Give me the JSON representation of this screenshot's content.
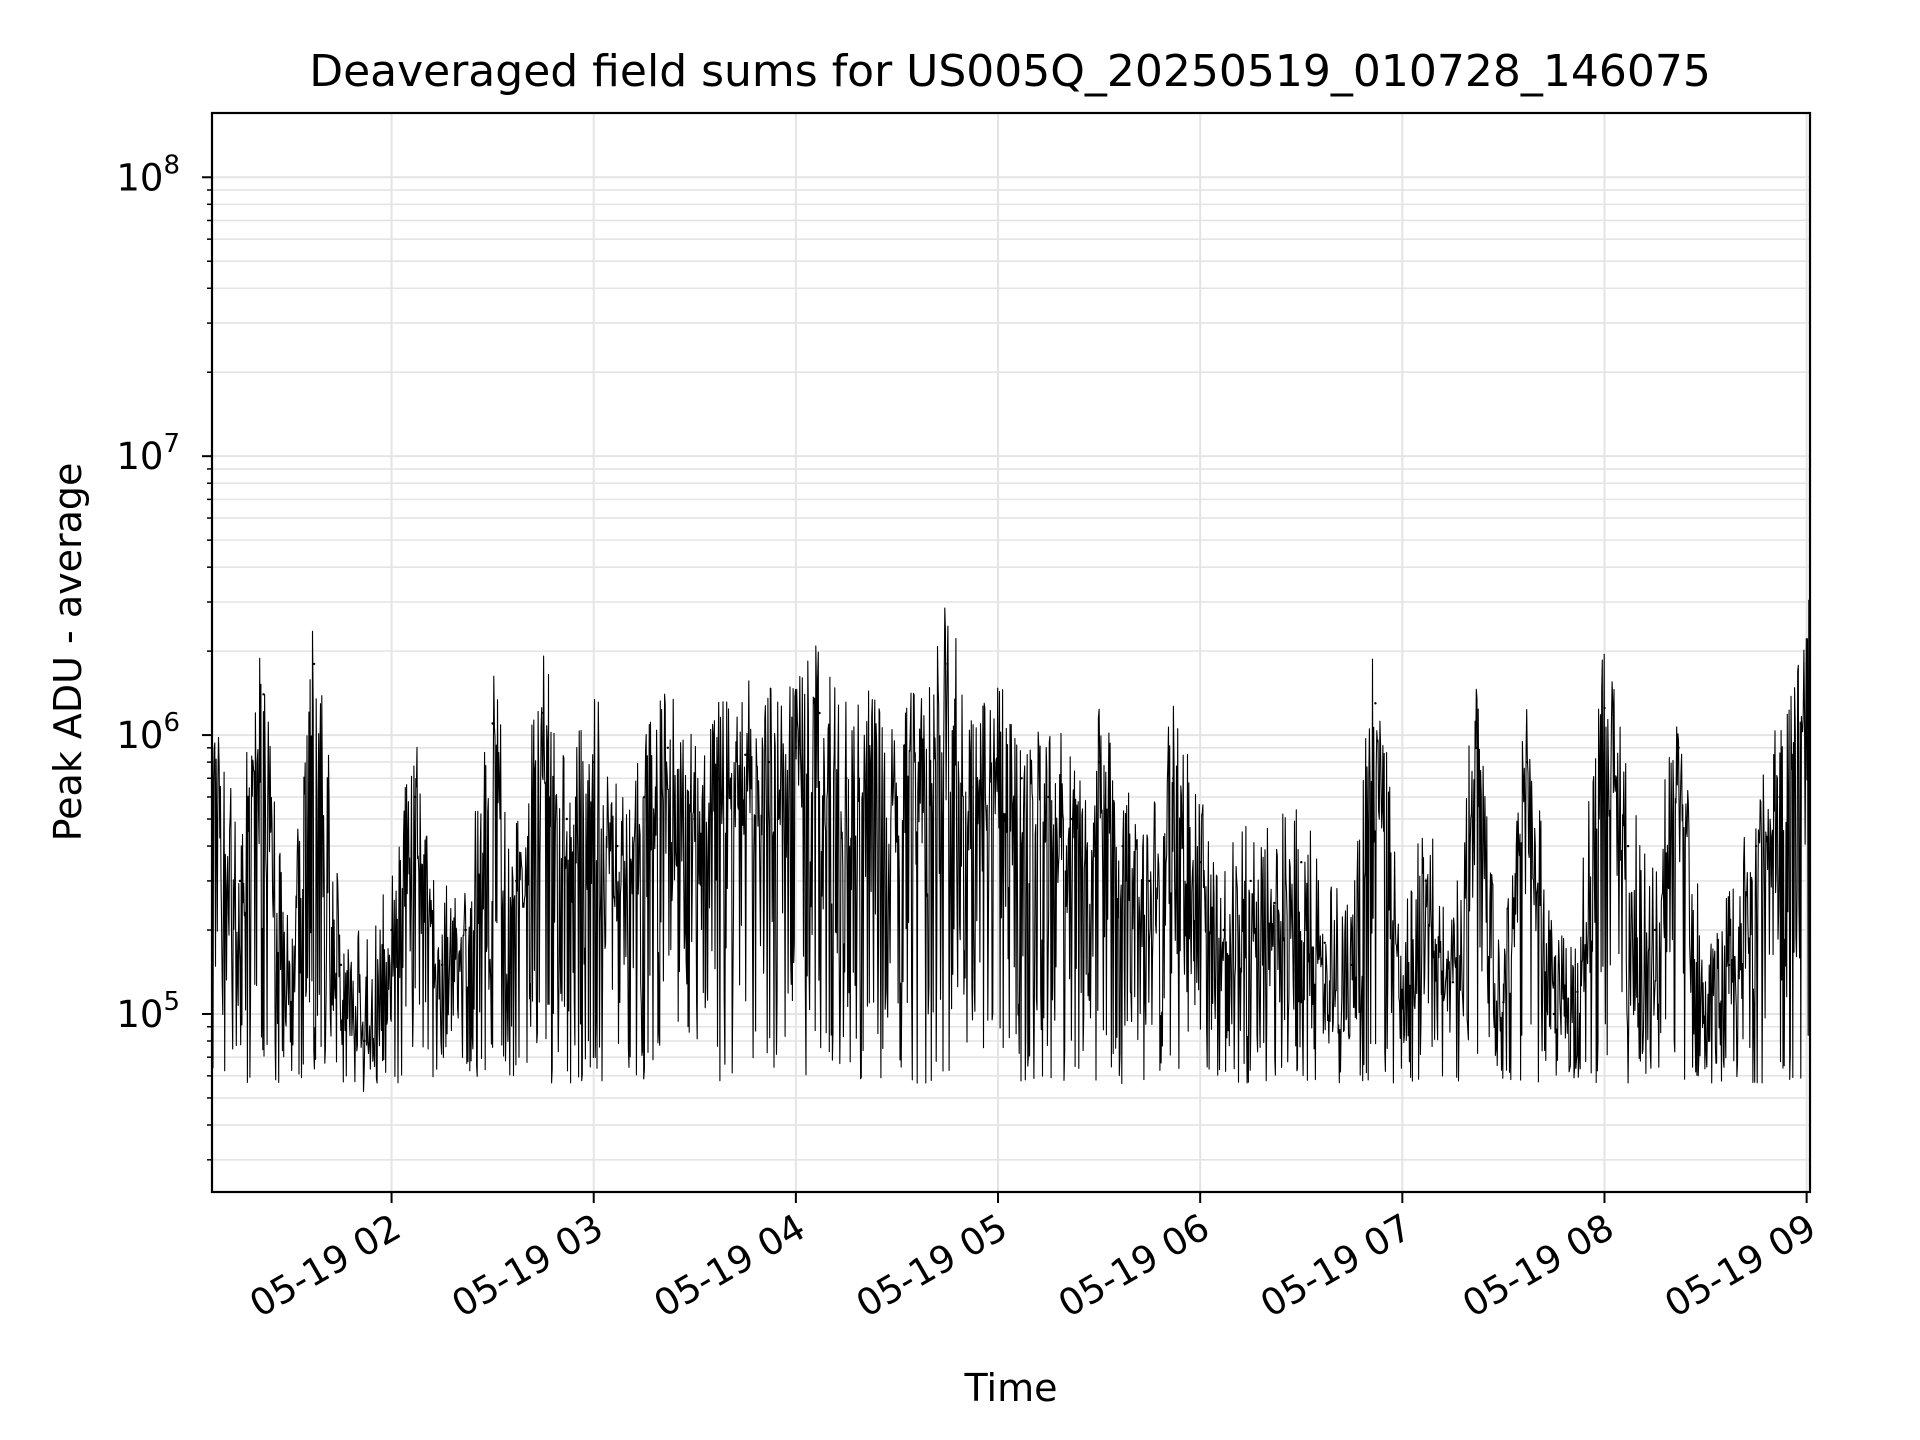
{
  "chart_data": {
    "type": "line",
    "title": "Deaveraged field sums for US005Q_20250519_010728_146075",
    "xlabel": "Time",
    "ylabel": "Peak ADU - average",
    "y_scale": "log",
    "ylim": [
      23000,
      170000000
    ],
    "xlim": [
      "2025-05-19 01:07",
      "2025-05-19 09:01"
    ],
    "grid": true,
    "line_color": "#000000",
    "x_tick_labels": [
      "05-19 02",
      "05-19 03",
      "05-19 04",
      "05-19 05",
      "05-19 06",
      "05-19 07",
      "05-19 08",
      "05-19 09"
    ],
    "y_tick_labels": [
      {
        "base": "10",
        "exp": "5"
      },
      {
        "base": "10",
        "exp": "6"
      },
      {
        "base": "10",
        "exp": "7"
      },
      {
        "base": "10",
        "exp": "8"
      }
    ],
    "series": [
      {
        "x": [
          "2025-05-19 01:07",
          "2025-05-19 01:15",
          "2025-05-19 01:22",
          "2025-05-19 01:30",
          "2025-05-19 01:37",
          "2025-05-19 01:45",
          "2025-05-19 01:52",
          "2025-05-19 02:00",
          "2025-05-19 02:07",
          "2025-05-19 02:15",
          "2025-05-19 02:22",
          "2025-05-19 02:30",
          "2025-05-19 02:37",
          "2025-05-19 02:45",
          "2025-05-19 02:52",
          "2025-05-19 03:00",
          "2025-05-19 03:07",
          "2025-05-19 03:15",
          "2025-05-19 03:22",
          "2025-05-19 03:30",
          "2025-05-19 03:37",
          "2025-05-19 03:45",
          "2025-05-19 03:52",
          "2025-05-19 04:00",
          "2025-05-19 04:07",
          "2025-05-19 04:15",
          "2025-05-19 04:22",
          "2025-05-19 04:30",
          "2025-05-19 04:37",
          "2025-05-19 04:45",
          "2025-05-19 04:52",
          "2025-05-19 05:00",
          "2025-05-19 05:07",
          "2025-05-19 05:15",
          "2025-05-19 05:22",
          "2025-05-19 05:30",
          "2025-05-19 05:37",
          "2025-05-19 05:45",
          "2025-05-19 05:52",
          "2025-05-19 06:00",
          "2025-05-19 06:07",
          "2025-05-19 06:15",
          "2025-05-19 06:22",
          "2025-05-19 06:30",
          "2025-05-19 06:37",
          "2025-05-19 06:45",
          "2025-05-19 06:52",
          "2025-05-19 07:00",
          "2025-05-19 07:07",
          "2025-05-19 07:15",
          "2025-05-19 07:22",
          "2025-05-19 07:30",
          "2025-05-19 07:37",
          "2025-05-19 07:45",
          "2025-05-19 07:52",
          "2025-05-19 08:00",
          "2025-05-19 08:07",
          "2025-05-19 08:15",
          "2025-05-19 08:22",
          "2025-05-19 08:30",
          "2025-05-19 08:37",
          "2025-05-19 08:45",
          "2025-05-19 08:52",
          "2025-05-19 09:00"
        ],
        "y": [
          700000,
          300000,
          1400000,
          100000,
          1800000,
          150000,
          80000,
          200000,
          600000,
          150000,
          200000,
          1100000,
          300000,
          1200000,
          500000,
          800000,
          400000,
          600000,
          900000,
          500000,
          700000,
          850000,
          800000,
          900000,
          1200000,
          700000,
          800000,
          600000,
          900000,
          1800000,
          650000,
          850000,
          700000,
          600000,
          500000,
          800000,
          400000,
          300000,
          700000,
          350000,
          200000,
          300000,
          250000,
          350000,
          180000,
          150000,
          1300000,
          120000,
          300000,
          130000,
          900000,
          110000,
          800000,
          100000,
          120000,
          1250000,
          400000,
          200000,
          900000,
          80000,
          150000,
          400000,
          600000,
          1800000
        ]
      }
    ]
  }
}
